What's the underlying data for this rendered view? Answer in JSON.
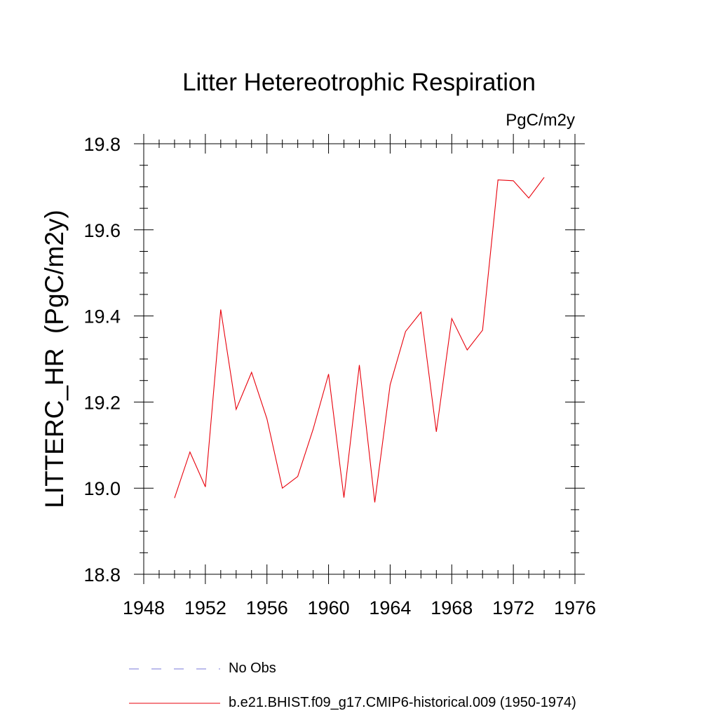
{
  "chart_data": {
    "type": "line",
    "title": "Litter Hetereotrophic Respiration",
    "units": "PgC/m2y",
    "ylabel": "LITTERC_HR  (PgC/m2y)",
    "xlabel": "",
    "xlim": [
      1948,
      1976
    ],
    "ylim": [
      18.8,
      19.8
    ],
    "xticks": [
      1948,
      1952,
      1956,
      1960,
      1964,
      1968,
      1972,
      1976
    ],
    "yticks": [
      "18.8",
      "19.0",
      "19.2",
      "19.4",
      "19.6",
      "19.8"
    ],
    "grid": false,
    "legend_position": "bottom",
    "series": [
      {
        "name": "b.e21.BHIST.f09_g17.CMIP6-historical.009 (1950-1974)",
        "color": "#e8000b",
        "style": "solid",
        "x": [
          1950,
          1951,
          1952,
          1953,
          1954,
          1955,
          1956,
          1957,
          1958,
          1959,
          1960,
          1961,
          1962,
          1963,
          1964,
          1965,
          1966,
          1967,
          1968,
          1969,
          1970,
          1971,
          1972,
          1973,
          1974
        ],
        "y": [
          18.977,
          19.084,
          19.003,
          19.415,
          19.183,
          19.269,
          19.161,
          19.0,
          19.027,
          19.137,
          19.265,
          18.978,
          19.286,
          18.967,
          19.24,
          19.364,
          19.409,
          19.131,
          19.394,
          19.321,
          19.367,
          19.716,
          19.714,
          19.674,
          19.722
        ]
      }
    ]
  },
  "legend": [
    {
      "label": "No Obs",
      "color": "#7a7ad8",
      "style": "dashed"
    },
    {
      "label": "b.e21.BHIST.f09_g17.CMIP6-historical.009 (1950-1974)",
      "color": "#e8000b",
      "style": "solid"
    }
  ]
}
